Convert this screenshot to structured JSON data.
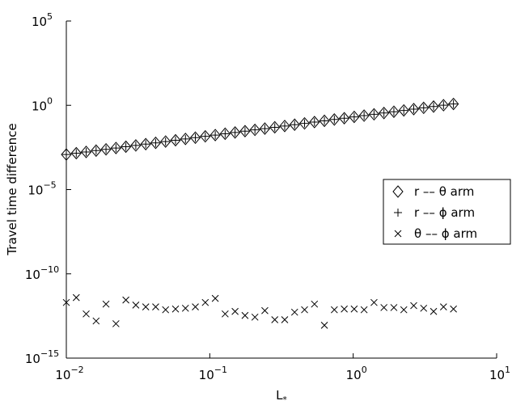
{
  "chart_data": {
    "type": "scatter",
    "xlabel": "L",
    "xlabel_subscript": "*",
    "ylabel": "Travel time difference",
    "log_x": true,
    "log_y": true,
    "xlim": [
      0.01,
      10
    ],
    "ylim": [
      1e-15,
      100000
    ],
    "xticks": [
      {
        "value": 0.01,
        "label": "10",
        "exponent": "−2"
      },
      {
        "value": 0.1,
        "label": "10",
        "exponent": "−1"
      },
      {
        "value": 1,
        "label": "10",
        "exponent": "0"
      },
      {
        "value": 10,
        "label": "10",
        "exponent": "1"
      }
    ],
    "yticks": [
      {
        "value": 1e-15,
        "label": "10",
        "exponent": "−15"
      },
      {
        "value": 1e-10,
        "label": "10",
        "exponent": "−10"
      },
      {
        "value": 1e-05,
        "label": "10",
        "exponent": "−5"
      },
      {
        "value": 1,
        "label": "10",
        "exponent": "0"
      },
      {
        "value": 100000,
        "label": "10",
        "exponent": "5"
      }
    ],
    "legend": "right",
    "x": [
      0.01,
      0.01173,
      0.01375,
      0.01613,
      0.01891,
      0.02218,
      0.02601,
      0.03051,
      0.03578,
      0.04196,
      0.0492,
      0.05771,
      0.06768,
      0.07937,
      0.09307,
      0.1092,
      0.128,
      0.1501,
      0.1761,
      0.2065,
      0.2421,
      0.284,
      0.333,
      0.3905,
      0.458,
      0.537,
      0.6299,
      0.7386,
      0.8663,
      1.016,
      1.191,
      1.397,
      1.638,
      1.921,
      2.253,
      2.642,
      3.099,
      3.634,
      4.262,
      5.0
    ],
    "series": [
      {
        "name": "r –– θ arm",
        "marker": "diamond",
        "color": "#000000",
        "values": [
          0.0012,
          0.00144,
          0.00171,
          0.00205,
          0.00244,
          0.00292,
          0.00348,
          0.00415,
          0.00496,
          0.00592,
          0.00706,
          0.00843,
          0.0101,
          0.012,
          0.0144,
          0.0171,
          0.0205,
          0.0244,
          0.0292,
          0.0348,
          0.0415,
          0.0496,
          0.0592,
          0.0706,
          0.0843,
          0.101,
          0.12,
          0.144,
          0.171,
          0.205,
          0.244,
          0.292,
          0.348,
          0.415,
          0.496,
          0.592,
          0.706,
          0.843,
          1.01,
          1.2
        ]
      },
      {
        "name": "r –– ϕ arm",
        "marker": "plus",
        "color": "#000000",
        "values": [
          0.0012,
          0.00144,
          0.00171,
          0.00205,
          0.00244,
          0.00292,
          0.00348,
          0.00415,
          0.00496,
          0.00592,
          0.00706,
          0.00843,
          0.0101,
          0.012,
          0.0144,
          0.0171,
          0.0205,
          0.0244,
          0.0292,
          0.0348,
          0.0415,
          0.0496,
          0.0592,
          0.0706,
          0.0843,
          0.101,
          0.12,
          0.144,
          0.171,
          0.205,
          0.244,
          0.292,
          0.348,
          0.415,
          0.496,
          0.592,
          0.706,
          0.843,
          1.01,
          1.2
        ]
      },
      {
        "name": "θ –– ϕ arm",
        "marker": "x",
        "color": "#000000",
        "values": [
          2e-12,
          3.9e-12,
          4.2e-13,
          1.6e-13,
          1.6e-12,
          1.1e-13,
          2.8e-12,
          1.4e-12,
          1.1e-12,
          1.1e-12,
          7.4e-13,
          8.2e-13,
          9.1e-13,
          1.1e-12,
          2e-12,
          3.5e-12,
          4.2e-13,
          5.9e-13,
          3.4e-13,
          2.7e-13,
          6.6e-13,
          1.9e-13,
          1.9e-13,
          5.3e-13,
          7.4e-13,
          1.6e-12,
          8.9e-14,
          7.4e-13,
          8.2e-13,
          8.2e-13,
          7.4e-13,
          2e-12,
          1e-12,
          1e-12,
          7.4e-13,
          1.3e-12,
          9.1e-13,
          5.9e-13,
          1.1e-12,
          8.2e-13
        ]
      }
    ]
  }
}
